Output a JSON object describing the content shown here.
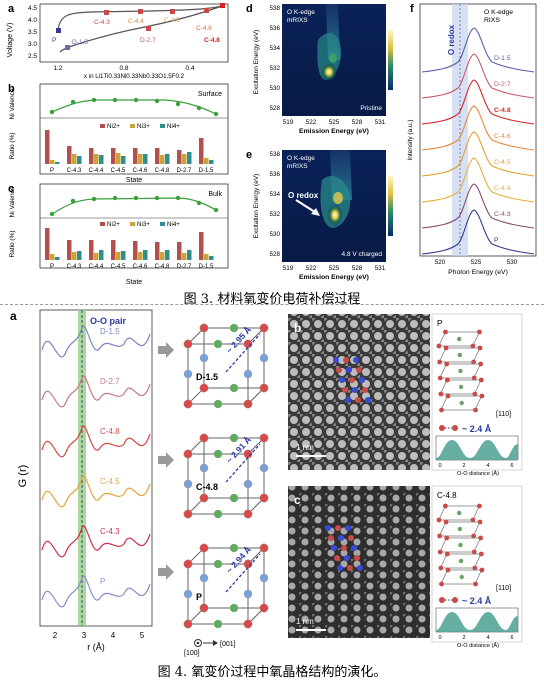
{
  "figure3": {
    "caption": "图 3. 材料氧变价电荷补偿过程",
    "a": {
      "letter": "a",
      "ylabel": "Voltage (V)",
      "xlabel": "x in Li1Ti0.33Ni0.33Nb0.33O1.5F0.2",
      "yticks": [
        "4.5",
        "4.0",
        "3.5",
        "3.0",
        "2.5"
      ],
      "xticks": [
        "1.2",
        "0.8",
        "0.4"
      ],
      "points": [
        "P",
        "C-4.3",
        "C-4.4",
        "C-4.5",
        "C-4.6",
        "C-4.8",
        "D-1.5",
        "D-2.7"
      ]
    },
    "b": {
      "letter": "b",
      "tag": "Surface",
      "valence_label": "Ni Valence",
      "ratio_label": "Ratio (%)",
      "valence_ticks": [
        "2.8",
        "2.4",
        "2.0"
      ],
      "ratio_ticks": [
        "60",
        "40",
        "20",
        "0"
      ],
      "legend": [
        "Ni2+",
        "Ni3+",
        "Ni4+"
      ],
      "xlabel": "State"
    },
    "c": {
      "letter": "c",
      "tag": "Bulk",
      "valence_label": "Ni Valence",
      "ratio_label": "Ratio (%)",
      "valence_ticks": [
        "2.8",
        "2.4",
        "2.0"
      ],
      "ratio_ticks": [
        "60",
        "40",
        "20",
        "0"
      ],
      "legend": [
        "Ni2+",
        "Ni3+",
        "Ni4+"
      ],
      "xlabel": "State"
    },
    "states": [
      "P",
      "C-4.3",
      "C-4.4",
      "C-4.5",
      "C-4.6",
      "C-4.8",
      "D-2.7",
      "D-1.5"
    ],
    "d": {
      "letter": "d",
      "line1": "O K-edge",
      "line2": "mRIXS",
      "tag": "Pristine"
    },
    "e": {
      "letter": "e",
      "line1": "O K-edge",
      "line2": "mRIXS",
      "tag": "4.8 V charged",
      "arrow_label": "O redox"
    },
    "map_ylabel": "Excitation Energy (eV)",
    "map_xlabel": "Emission Energy (eV)",
    "map_yticks": [
      "538",
      "536",
      "534",
      "532",
      "530",
      "528"
    ],
    "map_xticks": [
      "519",
      "522",
      "525",
      "528",
      "531"
    ],
    "f": {
      "letter": "f",
      "title1": "O K-edge",
      "title2": "RIXS",
      "band_label": "O redox",
      "ylabel": "Intensity (a.u.)",
      "xlabel": "Photon Energy (eV)",
      "xticks": [
        "520",
        "525",
        "530"
      ],
      "curves": [
        "D-1.5",
        "D-2.7",
        "C-4.8",
        "C-4.6",
        "C-4.5",
        "C-4.4",
        "C-4.3",
        "P"
      ],
      "colors": [
        "#5b5fa8",
        "#c85a68",
        "#d8262a",
        "#e6893c",
        "#e0a030",
        "#e6b03a",
        "#8a4a6a",
        "#3a3a8a"
      ]
    }
  },
  "figure4": {
    "caption": "图 4. 氧变价过程中氧晶格结构的演化。",
    "a": {
      "letter": "a",
      "pair_label": "O-O pair",
      "ylabel": "G (r)",
      "xlabel": "r (Å)",
      "xticks": [
        "2",
        "3",
        "4",
        "5"
      ],
      "curves": [
        {
          "label": "D-1.5",
          "color": "#7d85c2"
        },
        {
          "label": "D-2.7",
          "color": "#c77b86"
        },
        {
          "label": "C-4.8",
          "color": "#d84848"
        },
        {
          "label": "C-4.5",
          "color": "#e8a33c"
        },
        {
          "label": "C-4.3",
          "color": "#c8344a"
        },
        {
          "label": "P",
          "color": "#8a8ec8"
        }
      ]
    },
    "cells": [
      {
        "label": "D-1.5",
        "distance": "~ 2.95 Å"
      },
      {
        "label": "C-4.8",
        "distance": "~ 2.91 Å"
      },
      {
        "label": "P",
        "distance": "~ 2.94 Å"
      }
    ],
    "axis_labels": {
      "a100": "[100]",
      "a001": "[001]"
    },
    "b": {
      "letter": "b",
      "scale": "1 nm",
      "label": "P",
      "dir": "[110]",
      "distance": "~ 2.4 Å",
      "axis": "O-O distance (Å)",
      "ticks": [
        "0",
        "2",
        "4",
        "6"
      ]
    },
    "c": {
      "letter": "c",
      "scale": "1 nm",
      "label": "C-4.8",
      "dir": "[110]",
      "distance": "~ 2.4 Å",
      "axis": "O-O distance (Å)",
      "ticks": [
        "0",
        "2",
        "4",
        "6"
      ]
    }
  }
}
